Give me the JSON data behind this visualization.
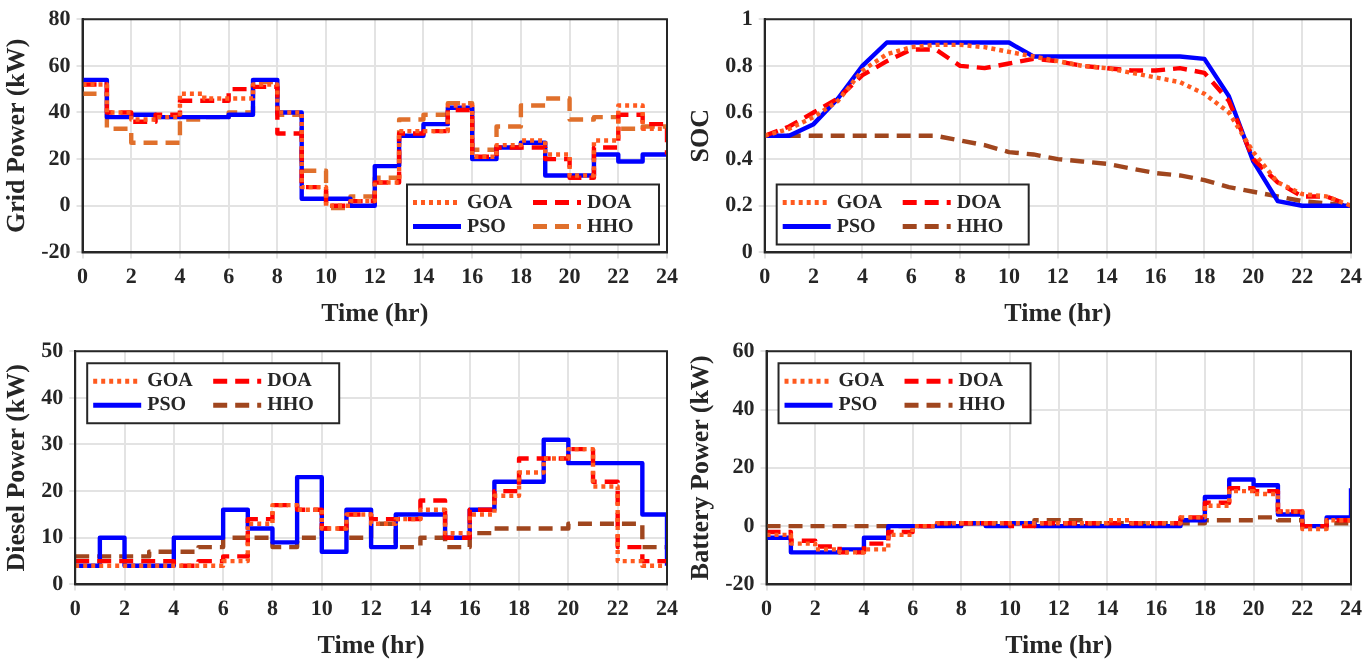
{
  "chart_data": [
    {
      "type": "step",
      "xlabel": "Time (hr)",
      "ylabel": "Grid Power (kW)",
      "xlim": [
        0,
        24
      ],
      "xticks": [
        0,
        2,
        4,
        6,
        8,
        10,
        12,
        14,
        16,
        18,
        20,
        22,
        24
      ],
      "ylim": [
        -20,
        80
      ],
      "yticks": [
        -20,
        0,
        20,
        40,
        60,
        80
      ],
      "grid": true,
      "legend": "bottom right",
      "x": [
        0,
        1,
        2,
        3,
        4,
        5,
        6,
        7,
        8,
        9,
        10,
        11,
        12,
        13,
        14,
        15,
        16,
        17,
        18,
        19,
        20,
        21,
        22,
        23,
        24
      ],
      "series": [
        {
          "name": "GOA",
          "color": "#ff5a1f",
          "line_style": "dotted",
          "values": [
            52,
            40,
            37,
            38,
            48,
            46,
            46,
            52,
            40,
            8,
            0,
            2,
            10,
            32,
            32,
            43,
            21,
            26,
            28,
            22,
            13,
            28,
            43,
            33,
            33
          ]
        },
        {
          "name": "DOA",
          "color": "#ff0000",
          "line_style": "dashed",
          "values": [
            52,
            40,
            36,
            39,
            45,
            45,
            50,
            51,
            31,
            8,
            0,
            2,
            10,
            31,
            32,
            41,
            21,
            25,
            25,
            20,
            12,
            25,
            39,
            35,
            22
          ]
        },
        {
          "name": "PSO",
          "color": "#0000ff",
          "line_style": "solid",
          "values": [
            54,
            38,
            39,
            38,
            38,
            38,
            39,
            54,
            40,
            3,
            3,
            0,
            17,
            30,
            35,
            42,
            20,
            25,
            27,
            13,
            13,
            22,
            19,
            22,
            22
          ]
        },
        {
          "name": "HHO",
          "color": "#e0702c",
          "line_style": "dashed",
          "values": [
            48,
            33,
            27,
            27,
            37,
            38,
            40,
            53,
            39,
            15,
            -1,
            4,
            12,
            37,
            39,
            44,
            24,
            34,
            43,
            46,
            37,
            38,
            33,
            34,
            34
          ]
        }
      ]
    },
    {
      "type": "line",
      "xlabel": "Time (hr)",
      "ylabel": "SOC",
      "xlim": [
        0,
        24
      ],
      "xticks": [
        0,
        2,
        4,
        6,
        8,
        10,
        12,
        14,
        16,
        18,
        20,
        22,
        24
      ],
      "ylim": [
        0,
        1
      ],
      "yticks": [
        0,
        0.2,
        0.4,
        0.6,
        0.8,
        1
      ],
      "grid": true,
      "legend": "bottom left",
      "x": [
        0,
        1,
        2,
        3,
        4,
        5,
        6,
        7,
        8,
        9,
        10,
        11,
        12,
        13,
        14,
        15,
        16,
        17,
        18,
        19,
        20,
        21,
        22,
        23,
        24
      ],
      "series": [
        {
          "name": "GOA",
          "color": "#ff5a1f",
          "line_style": "dotted",
          "values": [
            0.5,
            0.53,
            0.58,
            0.65,
            0.78,
            0.85,
            0.88,
            0.89,
            0.89,
            0.88,
            0.86,
            0.84,
            0.82,
            0.8,
            0.79,
            0.77,
            0.75,
            0.73,
            0.68,
            0.6,
            0.43,
            0.3,
            0.25,
            0.24,
            0.2
          ]
        },
        {
          "name": "DOA",
          "color": "#ff0000",
          "line_style": "dashed",
          "values": [
            0.5,
            0.54,
            0.6,
            0.66,
            0.76,
            0.82,
            0.87,
            0.87,
            0.8,
            0.79,
            0.81,
            0.83,
            0.82,
            0.8,
            0.79,
            0.78,
            0.78,
            0.79,
            0.77,
            0.65,
            0.4,
            0.3,
            0.24,
            0.24,
            0.2
          ]
        },
        {
          "name": "PSO",
          "color": "#0000ff",
          "line_style": "solid",
          "values": [
            0.5,
            0.5,
            0.55,
            0.66,
            0.8,
            0.9,
            0.9,
            0.9,
            0.9,
            0.9,
            0.9,
            0.84,
            0.84,
            0.84,
            0.84,
            0.84,
            0.84,
            0.84,
            0.83,
            0.67,
            0.39,
            0.22,
            0.2,
            0.2,
            0.2
          ]
        },
        {
          "name": "HHO",
          "color": "#a0461e",
          "line_style": "dashed",
          "values": [
            0.5,
            0.5,
            0.5,
            0.5,
            0.5,
            0.5,
            0.5,
            0.5,
            0.48,
            0.46,
            0.43,
            0.42,
            0.4,
            0.39,
            0.38,
            0.36,
            0.34,
            0.33,
            0.31,
            0.28,
            0.26,
            0.24,
            0.22,
            0.21,
            0.2
          ]
        }
      ]
    },
    {
      "type": "step",
      "xlabel": "Time (hr)",
      "ylabel": "Diesel Power (kW)",
      "xlim": [
        0,
        24
      ],
      "xticks": [
        0,
        2,
        4,
        6,
        8,
        10,
        12,
        14,
        16,
        18,
        20,
        22,
        24
      ],
      "ylim": [
        0,
        50
      ],
      "yticks": [
        0,
        10,
        20,
        30,
        40,
        50
      ],
      "grid": true,
      "legend": "top left",
      "x": [
        0,
        1,
        2,
        3,
        4,
        5,
        6,
        7,
        8,
        9,
        10,
        11,
        12,
        13,
        14,
        15,
        16,
        17,
        18,
        19,
        20,
        21,
        22,
        23,
        24
      ],
      "series": [
        {
          "name": "GOA",
          "color": "#ff5a1f",
          "line_style": "dotted",
          "values": [
            4,
            4,
            4,
            4,
            4,
            4,
            5,
            13,
            17,
            16,
            12,
            15,
            13,
            14,
            16,
            11,
            15,
            19,
            24,
            27,
            29,
            21,
            5,
            4,
            4
          ]
        },
        {
          "name": "DOA",
          "color": "#ff0000",
          "line_style": "dashed",
          "values": [
            5,
            5,
            5,
            5,
            4,
            5,
            6,
            14,
            17,
            16,
            12,
            15,
            14,
            14,
            18,
            10,
            16,
            20,
            27,
            27,
            29,
            22,
            8,
            5,
            5
          ]
        },
        {
          "name": "PSO",
          "color": "#0000ff",
          "line_style": "solid",
          "values": [
            4,
            10,
            4,
            4,
            10,
            10,
            16,
            12,
            9,
            23,
            7,
            16,
            8,
            15,
            15,
            10,
            16,
            22,
            22,
            31,
            26,
            26,
            26,
            15,
            4
          ]
        },
        {
          "name": "HHO",
          "color": "#a0461e",
          "line_style": "dashed",
          "values": [
            6,
            6,
            6,
            7,
            7,
            8,
            10,
            10,
            8,
            10,
            12,
            10,
            13,
            8,
            10,
            8,
            11,
            12,
            12,
            12,
            13,
            13,
            13,
            8,
            8
          ]
        }
      ]
    },
    {
      "type": "step",
      "xlabel": "Time (hr)",
      "ylabel": "Battery Power (kW)",
      "xlim": [
        0,
        24
      ],
      "xticks": [
        0,
        2,
        4,
        6,
        8,
        10,
        12,
        14,
        16,
        18,
        20,
        22,
        24
      ],
      "ylim": [
        -20,
        60
      ],
      "yticks": [
        -20,
        0,
        20,
        40,
        60
      ],
      "grid": true,
      "legend": "top left",
      "x": [
        0,
        1,
        2,
        3,
        4,
        5,
        6,
        7,
        8,
        9,
        10,
        11,
        12,
        13,
        14,
        15,
        16,
        17,
        18,
        19,
        20,
        21,
        22,
        23,
        24
      ],
      "series": [
        {
          "name": "GOA",
          "color": "#ff5a1f",
          "line_style": "dotted",
          "values": [
            -3,
            -6,
            -8,
            -9,
            -8,
            -3,
            0,
            1,
            1,
            1,
            1,
            1,
            1,
            1,
            2,
            1,
            1,
            3,
            7,
            12,
            11,
            5,
            -1,
            2,
            2
          ]
        },
        {
          "name": "DOA",
          "color": "#ff0000",
          "line_style": "dashed",
          "values": [
            -2,
            -5,
            -7,
            -9,
            -6,
            -2,
            0,
            1,
            1,
            1,
            0,
            1,
            1,
            1,
            1,
            1,
            1,
            3,
            8,
            13,
            12,
            5,
            0,
            2,
            2
          ]
        },
        {
          "name": "PSO",
          "color": "#0000ff",
          "line_style": "solid",
          "values": [
            -4,
            -9,
            -9,
            -8,
            -4,
            0,
            0,
            0,
            1,
            0,
            1,
            0,
            0,
            0,
            0,
            0,
            0,
            2,
            10,
            16,
            14,
            4,
            0,
            3,
            13
          ]
        },
        {
          "name": "HHO",
          "color": "#a0461e",
          "line_style": "dashed",
          "values": [
            0,
            0,
            0,
            0,
            0,
            0,
            0,
            1,
            1,
            1,
            1,
            2,
            2,
            1,
            1,
            1,
            1,
            1,
            2,
            2,
            3,
            2,
            0,
            1,
            1
          ]
        }
      ]
    }
  ]
}
